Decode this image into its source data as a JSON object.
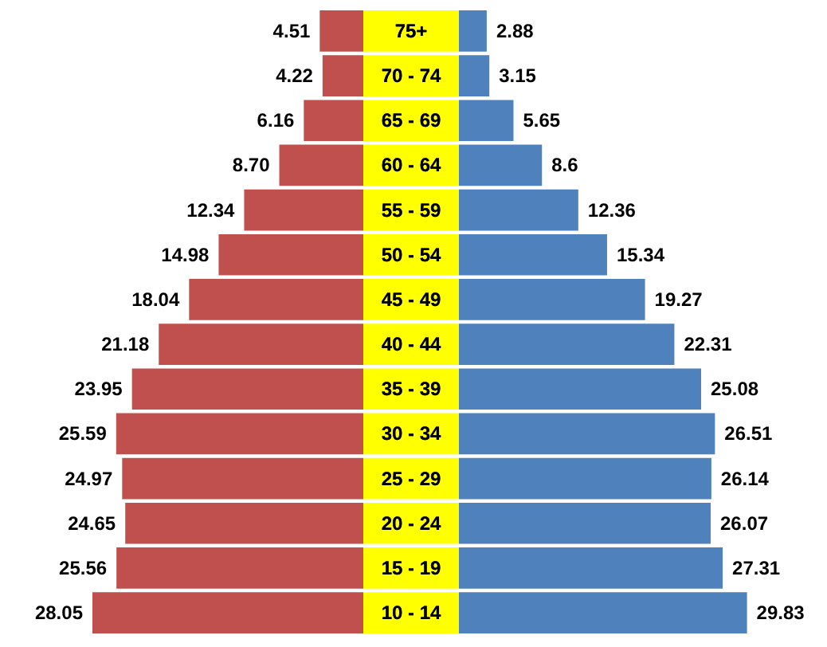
{
  "chart_data": [
    {
      "type": "bar",
      "orientation": "horizontal",
      "categories": [
        "75+",
        "70 - 74",
        "65 - 69",
        "60 - 64",
        "55 - 59",
        "50 - 54",
        "45 - 49",
        "40 - 44",
        "35 - 39",
        "30 - 34",
        "25 - 29",
        "20 - 24",
        "15 - 19",
        "10 - 14"
      ],
      "series": [
        {
          "color": "#c0504d",
          "values": [
            4.51,
            4.22,
            6.16,
            8.7,
            12.34,
            14.98,
            18.04,
            21.18,
            23.95,
            25.59,
            24.97,
            24.65,
            25.56,
            28.05
          ],
          "value_labels": [
            "4.51",
            "4.22",
            "6.16",
            "8.70",
            "12.34",
            "14.98",
            "18.04",
            "21.18",
            "23.95",
            "25.59",
            "24.97",
            "24.65",
            "25.56",
            "28.05"
          ]
        }
      ]
    },
    {
      "type": "bar",
      "orientation": "horizontal",
      "categories": [
        "75+",
        "70 - 74",
        "65 - 69",
        "60 - 64",
        "55 - 59",
        "50 - 54",
        "45 - 49",
        "40 - 44",
        "35 - 39",
        "30 - 34",
        "25 - 29",
        "20 - 24",
        "15 - 19",
        "10 - 14"
      ],
      "tick_labels": false,
      "series": [
        {
          "color": "#4f81bd",
          "values": [
            2.88,
            3.15,
            5.65,
            8.6,
            12.36,
            15.34,
            19.27,
            22.31,
            25.08,
            26.51,
            26.14,
            26.07,
            27.31,
            29.83
          ],
          "value_labels": [
            "2.88",
            "3.15",
            "5.65",
            "8.6",
            "12.36",
            "15.34",
            "19.27",
            "22.31",
            "25.08",
            "26.51",
            "26.14",
            "26.07",
            "27.31",
            "29.83"
          ]
        }
      ]
    }
  ]
}
